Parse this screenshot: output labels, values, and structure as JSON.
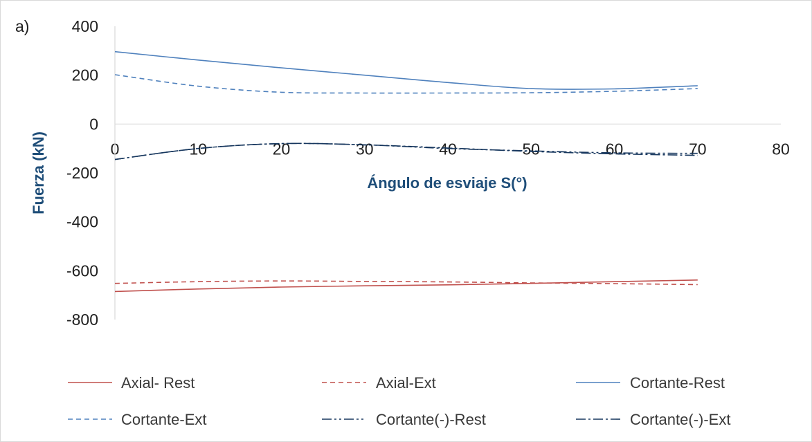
{
  "panel_label": "a)",
  "chart_data": {
    "type": "line",
    "title": "",
    "xlabel": "Ángulo de esviaje S(°)",
    "ylabel": "Fuerza (kN)",
    "xlim": [
      0,
      80
    ],
    "ylim": [
      -800,
      400
    ],
    "xticks": [
      0,
      10,
      20,
      30,
      40,
      50,
      60,
      70,
      80
    ],
    "yticks": [
      400,
      200,
      0,
      -200,
      -400,
      -600,
      -800
    ],
    "grid": false,
    "legend_position": "bottom",
    "series": [
      {
        "name": "Axial- Rest",
        "color": "#c0504d",
        "dash": "solid",
        "x": [
          0,
          10,
          20,
          30,
          40,
          50,
          60,
          70
        ],
        "y": [
          -685,
          -675,
          -667,
          -662,
          -658,
          -652,
          -645,
          -638
        ]
      },
      {
        "name": "Axial-Ext",
        "color": "#c0504d",
        "dash": "dashed",
        "x": [
          0,
          10,
          20,
          30,
          40,
          50,
          60,
          70
        ],
        "y": [
          -652,
          -645,
          -642,
          -644,
          -646,
          -650,
          -653,
          -657
        ]
      },
      {
        "name": "Cortante-Rest",
        "color": "#4f81bd",
        "dash": "solid",
        "x": [
          0,
          10,
          20,
          30,
          40,
          50,
          60,
          70
        ],
        "y": [
          296,
          262,
          230,
          200,
          170,
          145,
          144,
          157
        ]
      },
      {
        "name": "Cortante-Ext",
        "color": "#4f81bd",
        "dash": "dashed",
        "x": [
          0,
          10,
          20,
          30,
          40,
          50,
          60,
          70
        ],
        "y": [
          202,
          155,
          130,
          127,
          127,
          128,
          134,
          145
        ]
      },
      {
        "name": "Cortante(-)-Rest",
        "color": "#17375e",
        "dash": "dashdotdot",
        "x": [
          0,
          10,
          20,
          30,
          40,
          50,
          60,
          70
        ],
        "y": [
          -145,
          -100,
          -80,
          -85,
          -100,
          -110,
          -118,
          -120
        ]
      },
      {
        "name": "Cortante(-)-Ext",
        "color": "#17375e",
        "dash": "dashdot",
        "x": [
          0,
          10,
          20,
          30,
          40,
          50,
          60,
          70
        ],
        "y": [
          -145,
          -100,
          -80,
          -85,
          -98,
          -112,
          -122,
          -128
        ]
      }
    ]
  }
}
